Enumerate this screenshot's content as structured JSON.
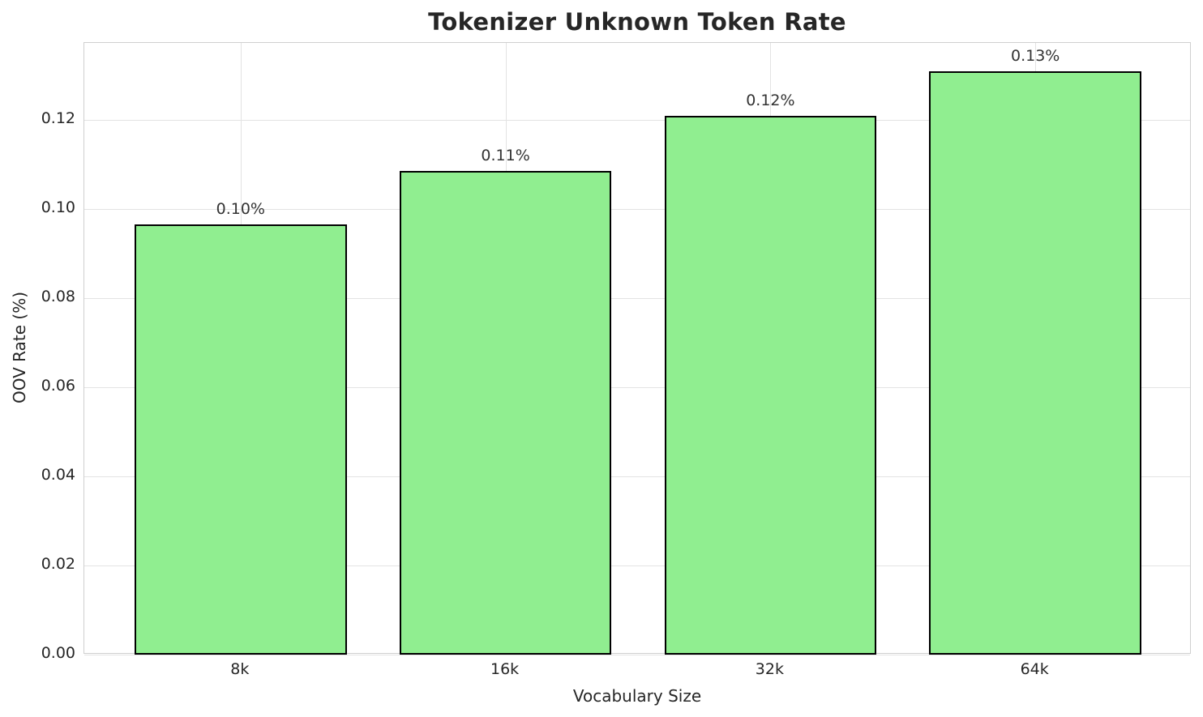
{
  "chart_data": {
    "type": "bar",
    "title": "Tokenizer Unknown Token Rate",
    "xlabel": "Vocabulary Size",
    "ylabel": "OOV Rate (%)",
    "categories": [
      "8k",
      "16k",
      "32k",
      "64k"
    ],
    "values": [
      0.0965,
      0.1085,
      0.121,
      0.131
    ],
    "bar_labels": [
      "0.10%",
      "0.11%",
      "0.12%",
      "0.13%"
    ],
    "yticks": [
      0.0,
      0.02,
      0.04,
      0.06,
      0.08,
      0.1,
      0.12
    ],
    "ytick_labels": [
      "0.00",
      "0.02",
      "0.04",
      "0.06",
      "0.08",
      "0.10",
      "0.12"
    ],
    "ylim": [
      0,
      0.1373
    ],
    "xlim": [
      -0.59,
      3.59
    ],
    "bar_width_units": 0.8,
    "grid": true,
    "legend": null,
    "colors": {
      "bar_fill": "#90EE90",
      "bar_edge": "#000000",
      "grid": "#e3e3e3",
      "spine": "#cfcfcf",
      "text": "#262626",
      "annotation": "#333333",
      "background": "#ffffff"
    }
  }
}
